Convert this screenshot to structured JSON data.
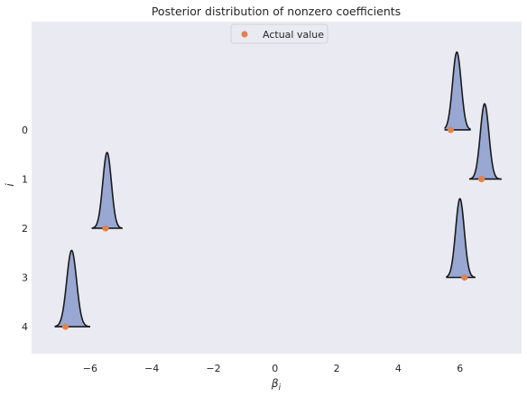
{
  "chart_data": {
    "type": "ridge",
    "title": "Posterior distribution of nonzero coefficients",
    "xlabel": "β",
    "xlabel_subscript": "i",
    "ylabel": "i",
    "xlim": [
      -7.9,
      8.0
    ],
    "ylim": [
      4.55,
      -2.2
    ],
    "xticks": [
      -6,
      -4,
      -2,
      0,
      2,
      4,
      6
    ],
    "xtick_labels": [
      "−6",
      "−4",
      "−2",
      "0",
      "2",
      "4",
      "6"
    ],
    "yticks": [
      0,
      1,
      2,
      3,
      4
    ],
    "ytick_labels": [
      "0",
      "1",
      "2",
      "3",
      "4"
    ],
    "grid": false,
    "legend": {
      "position": "top-center",
      "entries": [
        "Actual value"
      ]
    },
    "distributions": [
      {
        "i": 0,
        "mode": 5.9,
        "sd": 0.14,
        "min": 5.5,
        "max": 6.35,
        "height": 1.58
      },
      {
        "i": 1,
        "mode": 6.8,
        "sd": 0.14,
        "min": 6.3,
        "max": 7.35,
        "height": 1.53
      },
      {
        "i": 2,
        "mode": -5.45,
        "sd": 0.14,
        "min": -5.95,
        "max": -4.95,
        "height": 1.54
      },
      {
        "i": 3,
        "mode": 6.0,
        "sd": 0.14,
        "min": 5.55,
        "max": 6.5,
        "height": 1.6
      },
      {
        "i": 4,
        "mode": -6.6,
        "sd": 0.16,
        "min": -7.15,
        "max": -6.0,
        "height": 1.55
      }
    ],
    "actual_values": [
      {
        "i": 0,
        "value": 5.7
      },
      {
        "i": 1,
        "value": 6.7
      },
      {
        "i": 2,
        "value": -5.5
      },
      {
        "i": 3,
        "value": 6.15
      },
      {
        "i": 4,
        "value": -6.8
      }
    ],
    "colors": {
      "plot_bg": "#EAEAF2",
      "fill": "#98A8D2",
      "outline": "#1A1A1A",
      "marker": "#DD8452"
    }
  }
}
